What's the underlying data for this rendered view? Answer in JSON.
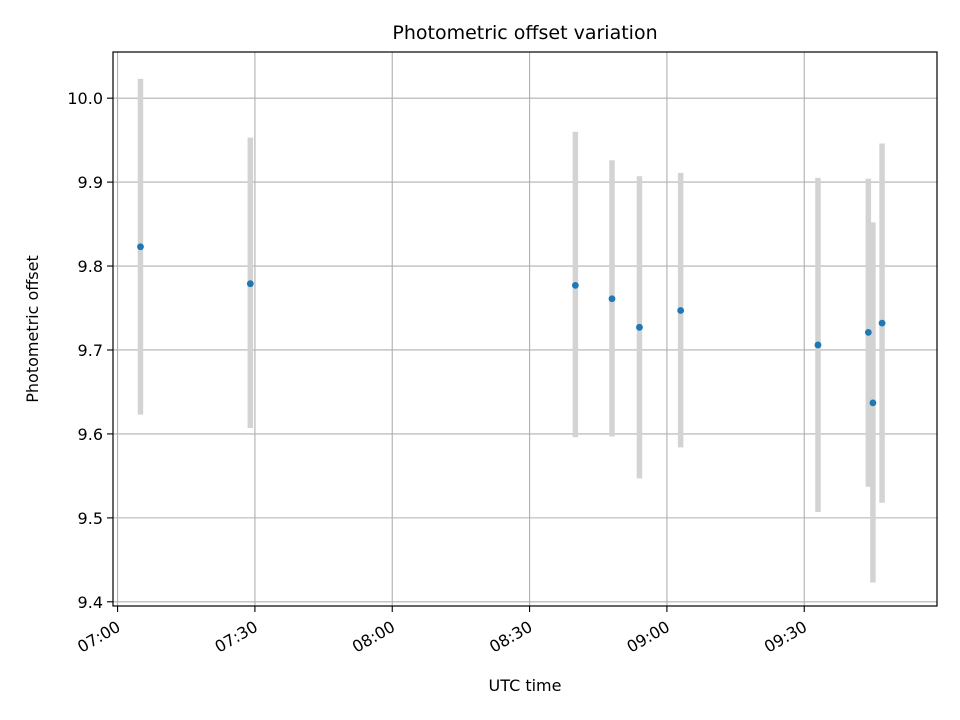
{
  "chart_data": {
    "type": "scatter",
    "title": "Photometric offset variation",
    "xlabel": "UTC time",
    "ylabel": "Photometric offset",
    "xlim": [
      "06:59",
      "09:59"
    ],
    "ylim": [
      9.395,
      10.055
    ],
    "x_ticks": [
      "07:00",
      "07:30",
      "08:00",
      "08:30",
      "09:00",
      "09:30"
    ],
    "y_ticks": [
      9.4,
      9.5,
      9.6,
      9.7,
      9.8,
      9.9,
      10.0
    ],
    "y_tick_labels": [
      "9.4",
      "9.5",
      "9.6",
      "9.7",
      "9.8",
      "9.9",
      "10.0"
    ],
    "grid": true,
    "marker_color": "#1f77b4",
    "errorbar_color": "#d3d3d3",
    "points": [
      {
        "x": "07:05",
        "y": 9.823,
        "err_low": 9.623,
        "err_high": 10.023
      },
      {
        "x": "07:29",
        "y": 9.779,
        "err_low": 9.607,
        "err_high": 9.953
      },
      {
        "x": "08:40",
        "y": 9.777,
        "err_low": 9.596,
        "err_high": 9.96
      },
      {
        "x": "08:48",
        "y": 9.761,
        "err_low": 9.597,
        "err_high": 9.926
      },
      {
        "x": "08:54",
        "y": 9.727,
        "err_low": 9.547,
        "err_high": 9.907
      },
      {
        "x": "09:03",
        "y": 9.747,
        "err_low": 9.584,
        "err_high": 9.911
      },
      {
        "x": "09:33",
        "y": 9.706,
        "err_low": 9.507,
        "err_high": 9.905
      },
      {
        "x": "09:44",
        "y": 9.721,
        "err_low": 9.537,
        "err_high": 9.904
      },
      {
        "x": "09:45",
        "y": 9.637,
        "err_low": 9.423,
        "err_high": 9.852
      },
      {
        "x": "09:47",
        "y": 9.732,
        "err_low": 9.518,
        "err_high": 9.946
      }
    ]
  }
}
